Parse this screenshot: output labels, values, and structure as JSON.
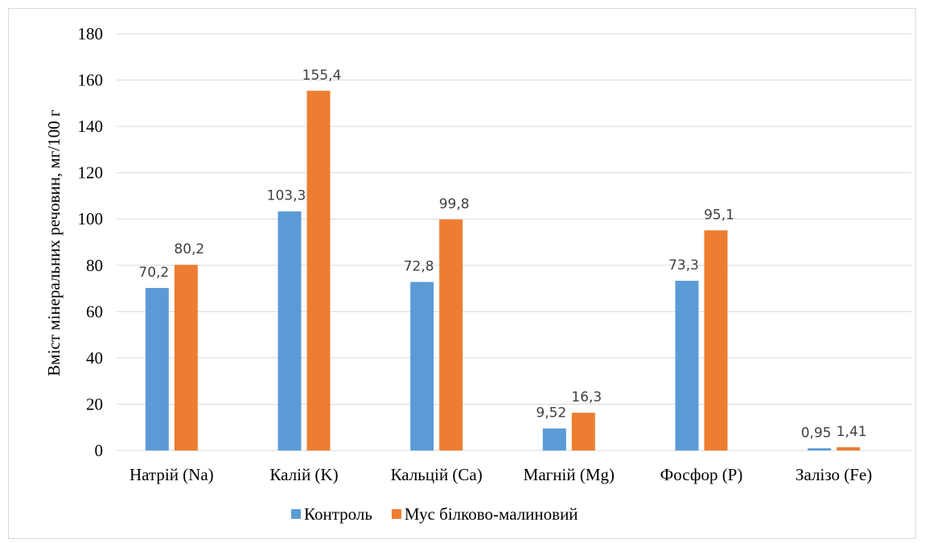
{
  "chart_data": {
    "type": "bar",
    "title": "",
    "xlabel": "",
    "ylabel": "Вміст мінеральних речовин, мг/100 г",
    "ylim": [
      0,
      180
    ],
    "yticks": [
      0,
      20,
      40,
      60,
      80,
      100,
      120,
      140,
      160,
      180
    ],
    "grid": true,
    "legend_position": "bottom",
    "categories": [
      "Натрій (Na)",
      "Калій (K)",
      "Кальцій (Ca)",
      "Магній (Mg)",
      "Фосфор (P)",
      "Залізо (Fe)"
    ],
    "series": [
      {
        "name": "Контроль",
        "color": "#5b9bd5",
        "values": [
          70.2,
          103.3,
          72.8,
          9.52,
          73.3,
          0.95
        ],
        "labels": [
          "70,2",
          "103,3",
          "72,8",
          "9,52",
          "73,3",
          "0,95"
        ]
      },
      {
        "name": "Мус білково-малиновий",
        "color": "#ed7d31",
        "values": [
          80.2,
          155.4,
          99.8,
          16.3,
          95.1,
          1.41
        ],
        "labels": [
          "80,2",
          "155,4",
          "99,8",
          "16,3",
          "95,1",
          "1,41"
        ]
      }
    ]
  }
}
